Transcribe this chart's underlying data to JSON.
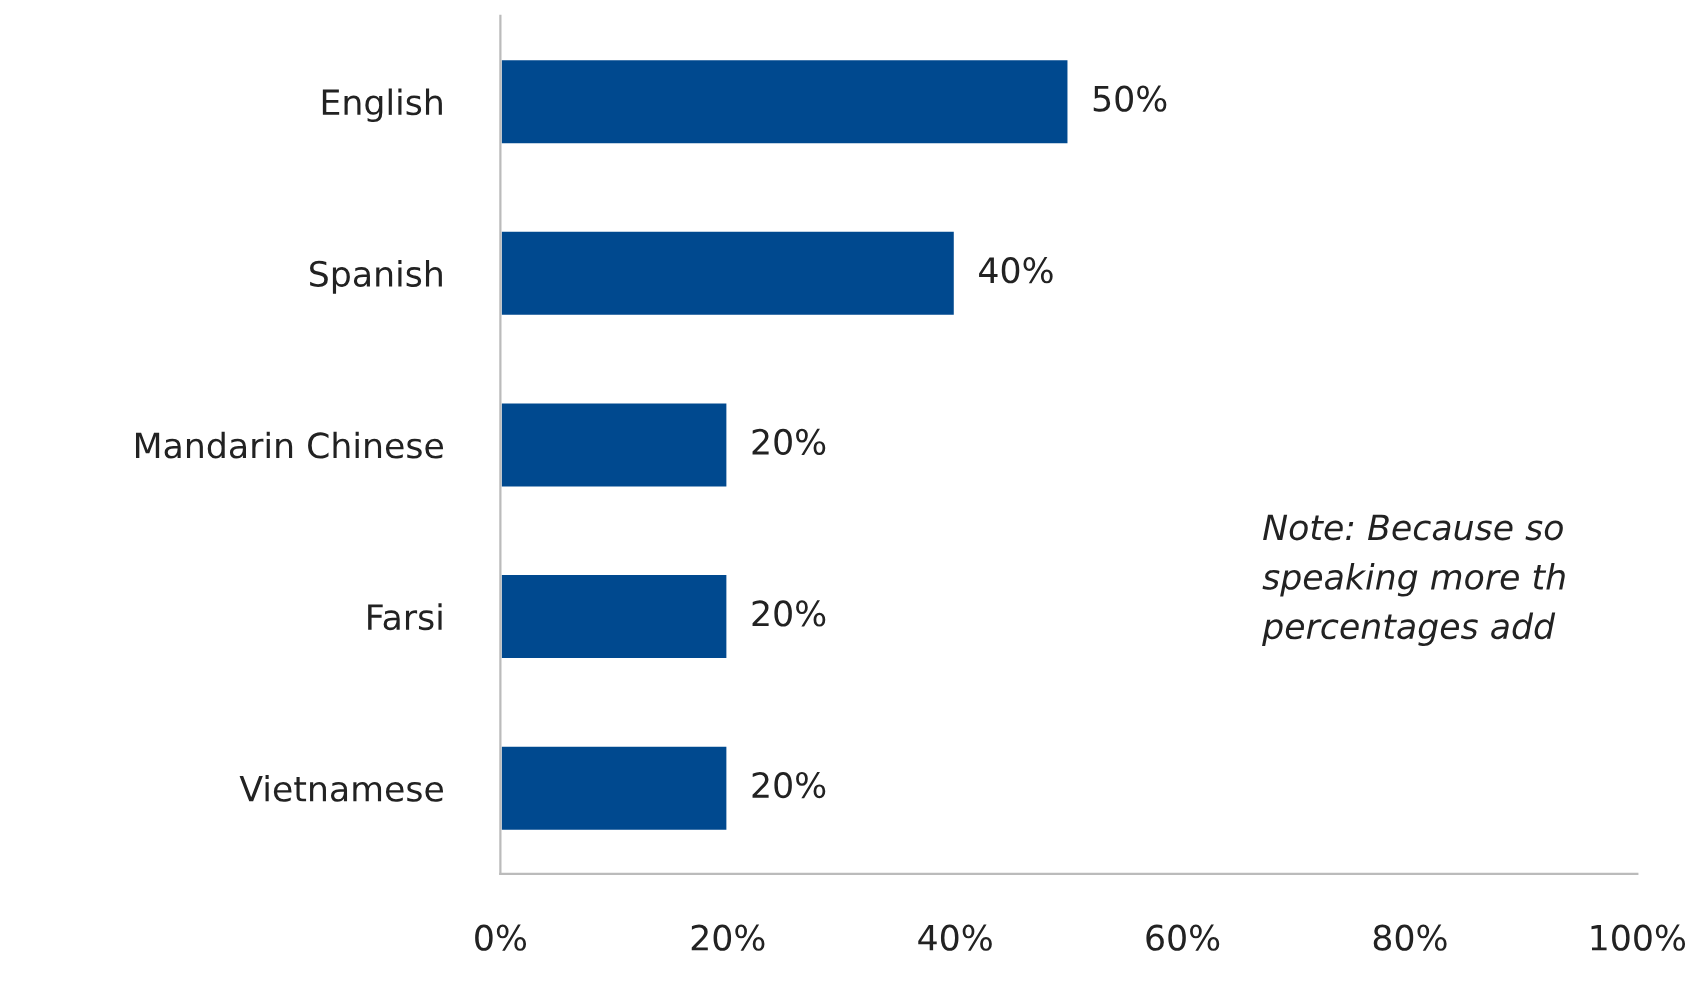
{
  "chart_data": {
    "type": "bar",
    "orientation": "horizontal",
    "categories": [
      "English",
      "Spanish",
      "Mandarin Chinese",
      "Farsi",
      "Vietnamese"
    ],
    "values": [
      50,
      40,
      20,
      20,
      20
    ],
    "value_labels": [
      "50%",
      "40%",
      "20%",
      "20%",
      "20%"
    ],
    "color": "#00498f",
    "xlim": [
      0,
      100
    ],
    "xticks": [
      {
        "value": 0,
        "label": "0%"
      },
      {
        "value": 20,
        "label": "20%"
      },
      {
        "value": 40,
        "label": "40%"
      },
      {
        "value": 60,
        "label": "60%"
      },
      {
        "value": 80,
        "label": "80%"
      },
      {
        "value": 100,
        "label": "100%"
      }
    ],
    "grid": false,
    "annotations": [
      "Note: Because so\nspeaking more th\npercentages add"
    ]
  }
}
